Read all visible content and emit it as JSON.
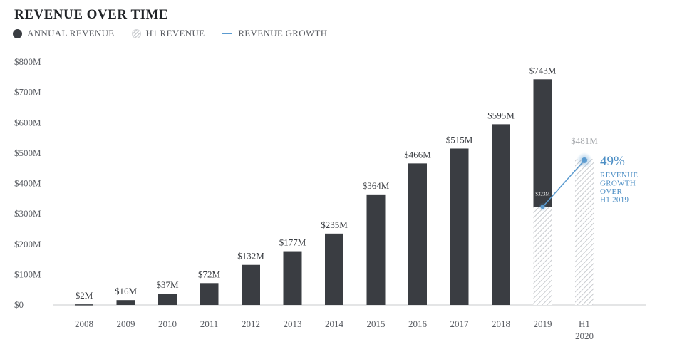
{
  "title": "REVENUE OVER TIME",
  "legend": {
    "annual": "ANNUAL REVENUE",
    "h1": "H1 REVENUE",
    "growth": "REVENUE GROWTH"
  },
  "colors": {
    "annual": "#3a3d42",
    "h1_hatch": "#c8cbcf",
    "growth": "#5b9bd0"
  },
  "chart_data": {
    "type": "bar",
    "title": "REVENUE OVER TIME",
    "xlabel": "",
    "ylabel": "",
    "ylim": [
      0,
      800
    ],
    "y_ticks": [
      "$0",
      "$100M",
      "$200M",
      "$300M",
      "$400M",
      "$500M",
      "$600M",
      "$700M",
      "$800M"
    ],
    "grid": false,
    "legend_position": "top-left",
    "categories": [
      "2008",
      "2009",
      "2010",
      "2011",
      "2012",
      "2013",
      "2014",
      "2015",
      "2016",
      "2017",
      "2018",
      "2019",
      "H1 2020"
    ],
    "series": [
      {
        "name": "ANNUAL REVENUE",
        "values": [
          2,
          16,
          37,
          72,
          132,
          177,
          235,
          364,
          466,
          515,
          595,
          743,
          null
        ],
        "labels": [
          "$2M",
          "$16M",
          "$37M",
          "$72M",
          "$132M",
          "$177M",
          "$235M",
          "$364M",
          "$466M",
          "$515M",
          "$595M",
          "$743M",
          ""
        ]
      },
      {
        "name": "H1 REVENUE",
        "values": [
          null,
          null,
          null,
          null,
          null,
          null,
          null,
          null,
          null,
          null,
          null,
          323,
          481
        ],
        "labels": [
          "",
          "",
          "",
          "",
          "",
          "",
          "",
          "",
          "",
          "",
          "",
          "$323M",
          "$481M"
        ]
      }
    ],
    "growth": {
      "name": "REVENUE GROWTH",
      "from": {
        "category": "2019",
        "value": 323
      },
      "to": {
        "category": "H1 2020",
        "value": 481
      },
      "percent_label": "49%",
      "annotation_lines": [
        "REVENUE",
        "GROWTH",
        "OVER",
        "H1 2019"
      ]
    }
  }
}
